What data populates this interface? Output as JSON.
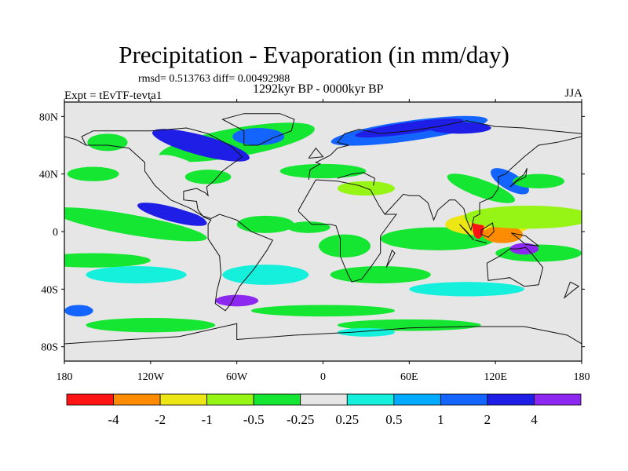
{
  "title": "Precipitation - Evaporation (in mm/day)",
  "stats": "rmsd= 0.513763 diff= 0.00492988",
  "period": "1292kyr BP - 0000kyr BP",
  "experiment": "Expt = tEvTF-tevta1",
  "season": "JJA",
  "map": {
    "projection": "cylindrical-equidistant",
    "background_color": "#e6e6e6",
    "lat_ticks": [
      {
        "label": "80N",
        "value": 80
      },
      {
        "label": "40N",
        "value": 40
      },
      {
        "label": "0",
        "value": 0
      },
      {
        "label": "40S",
        "value": -40
      },
      {
        "label": "80S",
        "value": -80
      }
    ],
    "lon_ticks": [
      {
        "label": "180",
        "value": -180
      },
      {
        "label": "120W",
        "value": -120
      },
      {
        "label": "60W",
        "value": -60
      },
      {
        "label": "0",
        "value": 0
      },
      {
        "label": "60E",
        "value": 60
      },
      {
        "label": "120E",
        "value": 120
      },
      {
        "label": "180",
        "value": 180
      }
    ]
  },
  "colorbar": {
    "labels": [
      "-4",
      "-2",
      "-1",
      "-0.5",
      "-0.25",
      "0.25",
      "0.5",
      "1",
      "2",
      "4"
    ],
    "colors": [
      "#ff1414",
      "#ff8c00",
      "#ebe614",
      "#96f514",
      "#14e632",
      "#e6e6e6",
      "#14f0dc",
      "#00aaff",
      "#1464ff",
      "#1e1ee6",
      "#8c28f0"
    ]
  }
}
